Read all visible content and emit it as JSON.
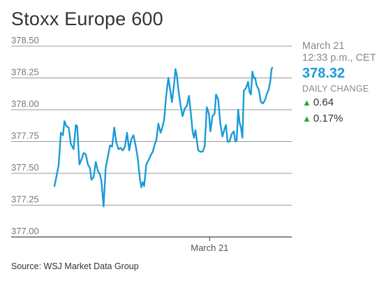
{
  "chart_data": {
    "type": "line",
    "title": "Stoxx Europe 600",
    "source": "Source: WSJ Market Data Group",
    "xlabel": "",
    "ylabel": "",
    "ylim": [
      377.0,
      378.5
    ],
    "y_ticks": [
      "378.50",
      "378.25",
      "378.00",
      "377.75",
      "377.50",
      "377.25",
      "377.00"
    ],
    "x_ticks": [
      {
        "label": "March 21",
        "x": 65.4
      }
    ],
    "xlim": [
      0,
      100
    ],
    "grid": true,
    "line_color": "#1a9bd7",
    "series": [
      {
        "values": [
          [
            0.0,
            377.4
          ],
          [
            0.9,
            377.48
          ],
          [
            1.8,
            377.57
          ],
          [
            2.7,
            377.82
          ],
          [
            3.6,
            377.8
          ],
          [
            4.2,
            377.91
          ],
          [
            5.1,
            377.87
          ],
          [
            6.0,
            377.86
          ],
          [
            6.9,
            377.73
          ],
          [
            8.1,
            377.69
          ],
          [
            9.0,
            377.88
          ],
          [
            9.6,
            377.87
          ],
          [
            10.5,
            377.57
          ],
          [
            11.4,
            377.61
          ],
          [
            12.3,
            377.66
          ],
          [
            13.2,
            377.65
          ],
          [
            14.1,
            377.57
          ],
          [
            15.0,
            377.54
          ],
          [
            15.6,
            377.45
          ],
          [
            16.5,
            377.47
          ],
          [
            17.4,
            377.59
          ],
          [
            18.3,
            377.52
          ],
          [
            19.2,
            377.49
          ],
          [
            19.8,
            377.44
          ],
          [
            20.7,
            377.24
          ],
          [
            21.6,
            377.54
          ],
          [
            22.5,
            377.63
          ],
          [
            23.4,
            377.72
          ],
          [
            24.3,
            377.71
          ],
          [
            25.2,
            377.86
          ],
          [
            26.1,
            377.74
          ],
          [
            27.0,
            377.69
          ],
          [
            27.9,
            377.7
          ],
          [
            28.8,
            377.68
          ],
          [
            29.7,
            377.71
          ],
          [
            30.6,
            377.82
          ],
          [
            31.5,
            377.68
          ],
          [
            32.4,
            377.77
          ],
          [
            33.3,
            377.8
          ],
          [
            34.2,
            377.72
          ],
          [
            35.1,
            377.62
          ],
          [
            36.0,
            377.46
          ],
          [
            36.6,
            377.39
          ],
          [
            37.2,
            377.43
          ],
          [
            37.8,
            377.4
          ],
          [
            38.7,
            377.57
          ],
          [
            39.6,
            377.6
          ],
          [
            40.5,
            377.64
          ],
          [
            41.4,
            377.67
          ],
          [
            42.3,
            377.73
          ],
          [
            42.9,
            377.76
          ],
          [
            43.8,
            377.89
          ],
          [
            44.7,
            377.82
          ],
          [
            45.3,
            377.85
          ],
          [
            46.2,
            377.92
          ],
          [
            47.1,
            378.11
          ],
          [
            48.0,
            378.25
          ],
          [
            48.6,
            378.18
          ],
          [
            49.5,
            378.06
          ],
          [
            50.4,
            378.2
          ],
          [
            51.0,
            378.32
          ],
          [
            51.6,
            378.27
          ],
          [
            52.2,
            378.16
          ],
          [
            53.1,
            378.04
          ],
          [
            54.0,
            377.95
          ],
          [
            54.9,
            378.01
          ],
          [
            55.8,
            378.03
          ],
          [
            56.7,
            378.11
          ],
          [
            57.6,
            377.95
          ],
          [
            58.2,
            377.83
          ],
          [
            58.8,
            377.78
          ],
          [
            59.4,
            377.84
          ],
          [
            60.0,
            377.76
          ],
          [
            60.6,
            377.68
          ],
          [
            61.5,
            377.67
          ],
          [
            62.4,
            377.67
          ],
          [
            63.3,
            377.71
          ],
          [
            64.2,
            378.02
          ],
          [
            65.1,
            377.97
          ],
          [
            65.7,
            377.83
          ],
          [
            66.6,
            377.95
          ],
          [
            67.5,
            377.97
          ],
          [
            68.1,
            378.12
          ],
          [
            69.0,
            378.08
          ],
          [
            69.9,
            377.89
          ],
          [
            70.8,
            377.79
          ],
          [
            71.7,
            377.85
          ],
          [
            72.3,
            377.88
          ],
          [
            72.9,
            377.75
          ],
          [
            73.8,
            377.75
          ],
          [
            74.7,
            377.81
          ],
          [
            75.6,
            377.83
          ],
          [
            76.2,
            377.75
          ],
          [
            76.8,
            377.76
          ],
          [
            77.4,
            378.0
          ],
          [
            78.0,
            377.9
          ],
          [
            78.6,
            377.86
          ],
          [
            79.2,
            377.78
          ],
          [
            79.8,
            378.15
          ],
          [
            80.7,
            378.17
          ],
          [
            81.6,
            378.22
          ],
          [
            82.2,
            378.14
          ],
          [
            82.8,
            378.12
          ],
          [
            83.4,
            378.3
          ],
          [
            84.0,
            378.25
          ],
          [
            84.6,
            378.25
          ],
          [
            85.2,
            378.19
          ],
          [
            86.1,
            378.16
          ],
          [
            87.0,
            378.06
          ],
          [
            87.9,
            378.05
          ],
          [
            88.8,
            378.08
          ],
          [
            89.4,
            378.12
          ],
          [
            90.3,
            378.16
          ],
          [
            90.9,
            378.22
          ],
          [
            91.5,
            378.32
          ],
          [
            91.8,
            378.33
          ]
        ]
      }
    ]
  },
  "panel": {
    "date": "March 21",
    "time": "12:33 p.m., CET",
    "price": "378.32",
    "daily_change_label": "DAILY CHANGE",
    "change_points": "0.64",
    "change_pct": "0.17%",
    "up_color": "#2aa34a"
  }
}
